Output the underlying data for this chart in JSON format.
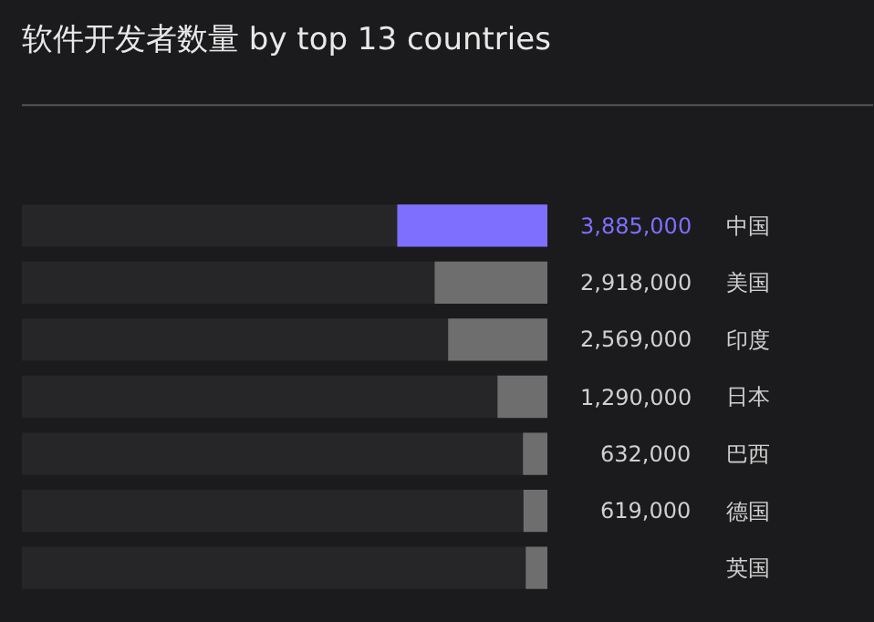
{
  "chart_data": {
    "type": "bar",
    "orientation": "horizontal",
    "title": "软件开发者数量 by top 13 countries",
    "categories": [
      "中国",
      "美国",
      "印度",
      "日本",
      "巴西",
      "德国",
      "英国"
    ],
    "values": [
      3885000,
      2918000,
      2569000,
      1290000,
      632000,
      619000,
      560000
    ],
    "colors": [
      "#7f6fff",
      "#6e6e6e",
      "#6e6e6e",
      "#6e6e6e",
      "#6e6e6e",
      "#6e6e6e",
      "#6e6e6e"
    ],
    "value_labels": [
      "3,885,000",
      "2,918,000",
      "2,569,000",
      "1,290,000",
      "632,000",
      "619,000",
      null
    ],
    "xlim": [
      13600000,
      0
    ],
    "tick_labels": false,
    "grid": false,
    "legend": false
  }
}
